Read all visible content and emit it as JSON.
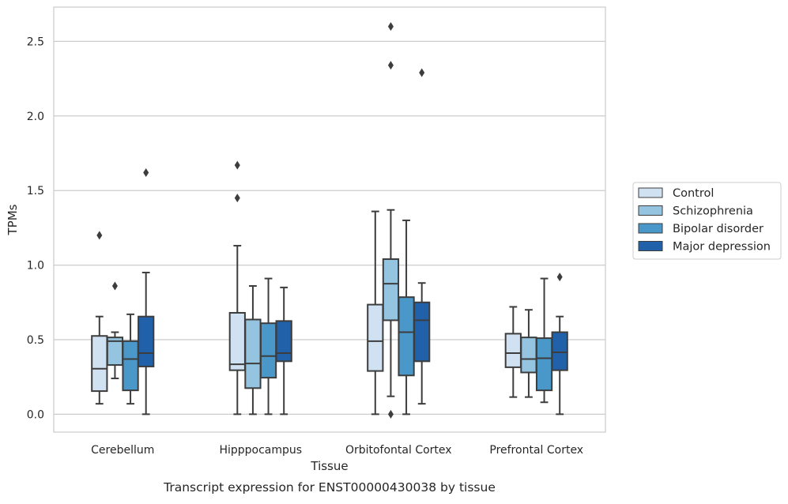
{
  "chart_data": {
    "type": "box",
    "xlabel": "Tissue",
    "ylabel": "TPMs",
    "caption": "Transcript expression for ENST00000430038 by tissue",
    "categories": [
      "Cerebellum",
      "Hipppocampus",
      "Orbitofontal Cortex",
      "Prefrontal Cortex"
    ],
    "ylim": [
      -0.12,
      2.73
    ],
    "yticks": [
      0.0,
      0.5,
      1.0,
      1.5,
      2.0,
      2.5
    ],
    "ytick_labels": [
      "0.0",
      "0.5",
      "1.0",
      "1.5",
      "2.0",
      "2.5"
    ],
    "grid": "horizontal",
    "legend_placement": "right",
    "series": [
      {
        "name": "Control",
        "color": "#d0e1f2",
        "boxes": [
          {
            "whislo": 0.07,
            "q1": 0.155,
            "med": 0.305,
            "q3": 0.525,
            "whishi": 0.655,
            "fliers": [
              1.2
            ]
          },
          {
            "whislo": 0.0,
            "q1": 0.295,
            "med": 0.335,
            "q3": 0.68,
            "whishi": 1.13,
            "fliers": [
              1.45,
              1.67
            ]
          },
          {
            "whislo": 0.0,
            "q1": 0.29,
            "med": 0.49,
            "q3": 0.735,
            "whishi": 1.36,
            "fliers": []
          },
          {
            "whislo": 0.115,
            "q1": 0.315,
            "med": 0.41,
            "q3": 0.54,
            "whishi": 0.72,
            "fliers": []
          }
        ]
      },
      {
        "name": "Schizophrenia",
        "color": "#94c4df",
        "boxes": [
          {
            "whislo": 0.24,
            "q1": 0.33,
            "med": 0.49,
            "q3": 0.515,
            "whishi": 0.55,
            "fliers": [
              0.86
            ]
          },
          {
            "whislo": 0.0,
            "q1": 0.175,
            "med": 0.34,
            "q3": 0.635,
            "whishi": 0.86,
            "fliers": []
          },
          {
            "whislo": 0.12,
            "q1": 0.63,
            "med": 0.875,
            "q3": 1.04,
            "whishi": 1.37,
            "fliers": [
              0.0,
              2.34,
              2.6
            ]
          },
          {
            "whislo": 0.115,
            "q1": 0.28,
            "med": 0.37,
            "q3": 0.515,
            "whishi": 0.7,
            "fliers": []
          }
        ]
      },
      {
        "name": "Bipolar disorder",
        "color": "#4a98c9",
        "boxes": [
          {
            "whislo": 0.07,
            "q1": 0.16,
            "med": 0.37,
            "q3": 0.49,
            "whishi": 0.67,
            "fliers": []
          },
          {
            "whislo": 0.0,
            "q1": 0.245,
            "med": 0.39,
            "q3": 0.61,
            "whishi": 0.91,
            "fliers": []
          },
          {
            "whislo": 0.0,
            "q1": 0.26,
            "med": 0.55,
            "q3": 0.785,
            "whishi": 1.3,
            "fliers": []
          },
          {
            "whislo": 0.08,
            "q1": 0.16,
            "med": 0.375,
            "q3": 0.51,
            "whishi": 0.91,
            "fliers": []
          }
        ]
      },
      {
        "name": "Major depression",
        "color": "#2161a9",
        "boxes": [
          {
            "whislo": 0.0,
            "q1": 0.32,
            "med": 0.41,
            "q3": 0.655,
            "whishi": 0.95,
            "fliers": [
              1.62
            ]
          },
          {
            "whislo": 0.0,
            "q1": 0.355,
            "med": 0.41,
            "q3": 0.625,
            "whishi": 0.85,
            "fliers": []
          },
          {
            "whislo": 0.07,
            "q1": 0.355,
            "med": 0.63,
            "q3": 0.75,
            "whishi": 0.88,
            "fliers": [
              2.29
            ]
          },
          {
            "whislo": 0.0,
            "q1": 0.295,
            "med": 0.415,
            "q3": 0.55,
            "whishi": 0.655,
            "fliers": [
              0.92
            ]
          }
        ]
      }
    ]
  }
}
